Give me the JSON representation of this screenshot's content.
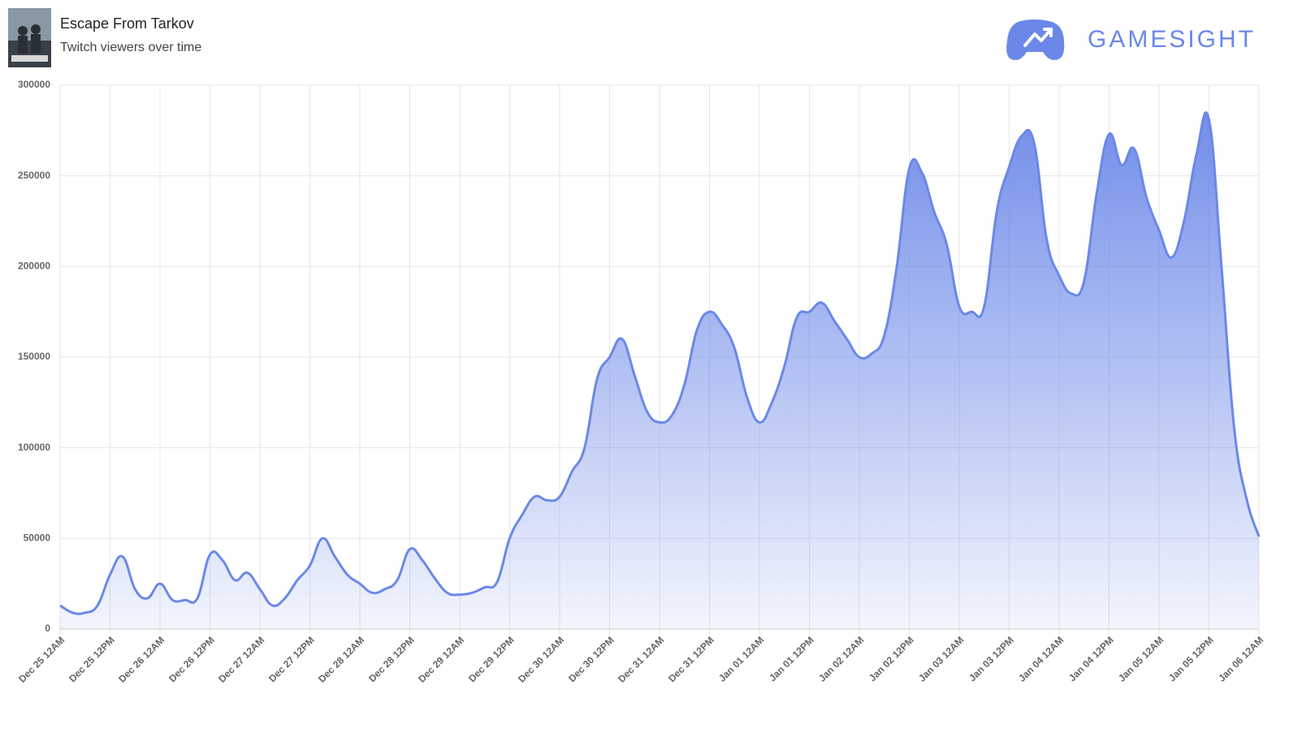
{
  "header": {
    "title": "Escape From Tarkov",
    "subtitle": "Twitch viewers over time",
    "logo_text": "GAMESIGHT"
  },
  "chart_data": {
    "type": "area",
    "color": "#6b88e8",
    "grid": true,
    "ylim": [
      0,
      300000
    ],
    "yticks": [
      0,
      50000,
      100000,
      150000,
      200000,
      250000,
      300000
    ],
    "xticks": [
      "Dec 25 12AM",
      "Dec 25 12PM",
      "Dec 26 12AM",
      "Dec 26 12PM",
      "Dec 27 12AM",
      "Dec 27 12PM",
      "Dec 28 12AM",
      "Dec 28 12PM",
      "Dec 29 12AM",
      "Dec 29 12PM",
      "Dec 30 12AM",
      "Dec 30 12PM",
      "Dec 31 12AM",
      "Dec 31 12PM",
      "Jan 01 12AM",
      "Jan 01 12PM",
      "Jan 02 12AM",
      "Jan 02 12PM",
      "Jan 03 12AM",
      "Jan 03 12PM",
      "Jan 04 12AM",
      "Jan 04 12PM",
      "Jan 05 12AM",
      "Jan 05 12PM",
      "Jan 06 12AM"
    ],
    "values": [
      13000,
      9000,
      9000,
      13000,
      30000,
      40000,
      22000,
      17000,
      25000,
      16000,
      16000,
      17000,
      41000,
      38000,
      27000,
      31000,
      22000,
      13000,
      17000,
      27000,
      35000,
      50000,
      40000,
      30000,
      25000,
      20000,
      22000,
      27000,
      44000,
      38000,
      28000,
      20000,
      19000,
      20000,
      23000,
      26000,
      50000,
      63000,
      73000,
      71000,
      73000,
      87000,
      100000,
      138000,
      150000,
      160000,
      140000,
      120000,
      114000,
      118000,
      135000,
      165000,
      175000,
      168000,
      155000,
      128000,
      114000,
      125000,
      145000,
      172000,
      175000,
      180000,
      170000,
      160000,
      150000,
      152000,
      162000,
      200000,
      254000,
      252000,
      230000,
      212000,
      178000,
      175000,
      178000,
      230000,
      255000,
      272000,
      268000,
      215000,
      195000,
      185000,
      192000,
      240000,
      273000,
      256000,
      265000,
      238000,
      220000,
      205000,
      225000,
      262000,
      281000,
      200000,
      112000,
      72000,
      51000
    ]
  }
}
